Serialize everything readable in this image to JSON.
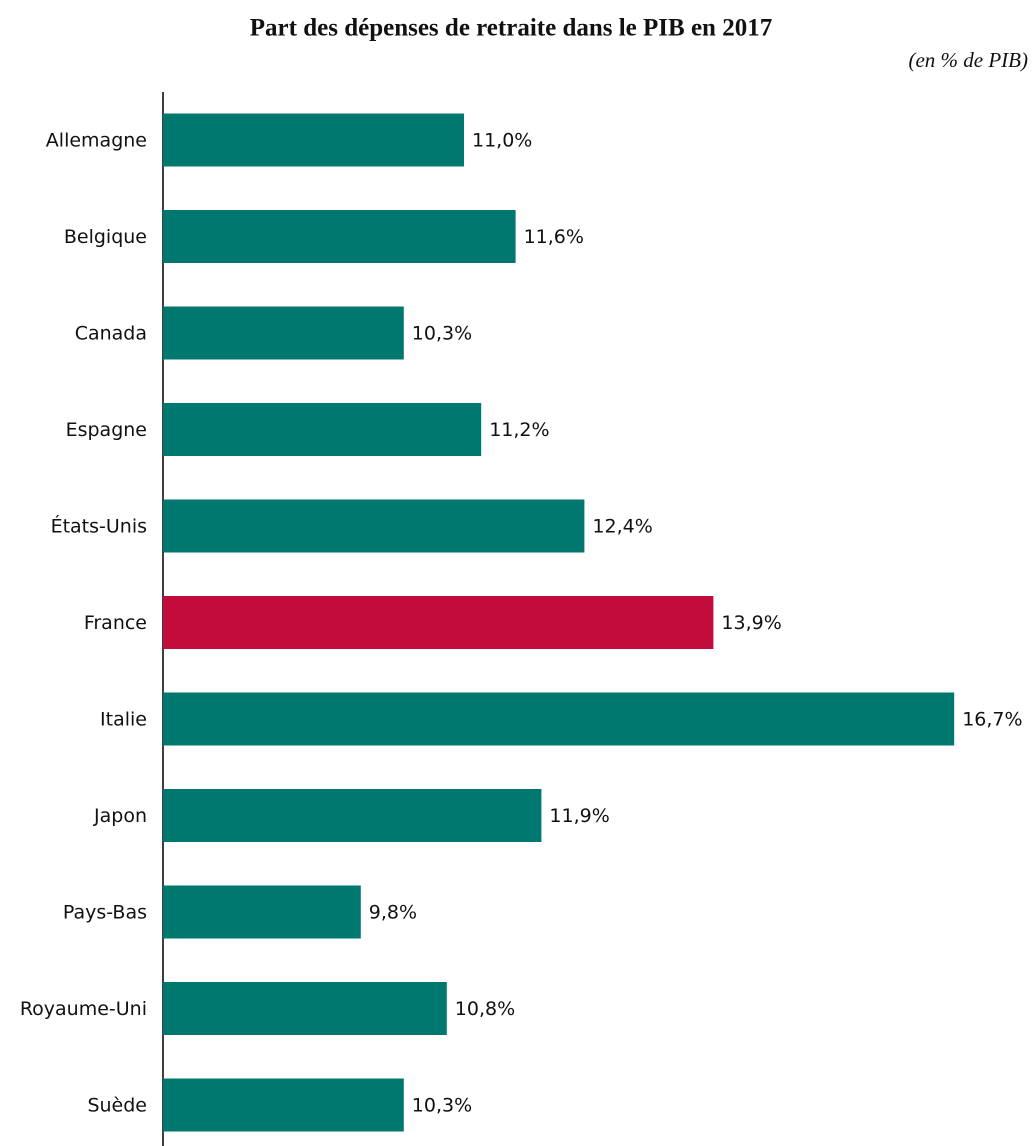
{
  "chart_data": {
    "type": "bar",
    "orientation": "horizontal",
    "title": "Part des dépenses de retraite dans le PIB en 2017",
    "subtitle": "(en % de PIB)",
    "categories": [
      "Allemagne",
      "Belgique",
      "Canada",
      "Espagne",
      "États-Unis",
      "France",
      "Italie",
      "Japon",
      "Pays-Bas",
      "Royaume-Uni",
      "Suède"
    ],
    "values": [
      11.0,
      11.6,
      10.3,
      11.2,
      12.4,
      13.9,
      16.7,
      11.9,
      9.8,
      10.8,
      10.3
    ],
    "value_labels": [
      "11,0%",
      "11,6%",
      "10,3%",
      "11,2%",
      "12,4%",
      "13,9%",
      "16,7%",
      "11,9%",
      "9,8%",
      "10,8%",
      "10,3%"
    ],
    "colors": [
      "#00776f",
      "#00776f",
      "#00776f",
      "#00776f",
      "#00776f",
      "#c20c3c",
      "#00776f",
      "#00776f",
      "#00776f",
      "#00776f",
      "#00776f"
    ],
    "xlim": [
      7.5,
      17
    ]
  }
}
